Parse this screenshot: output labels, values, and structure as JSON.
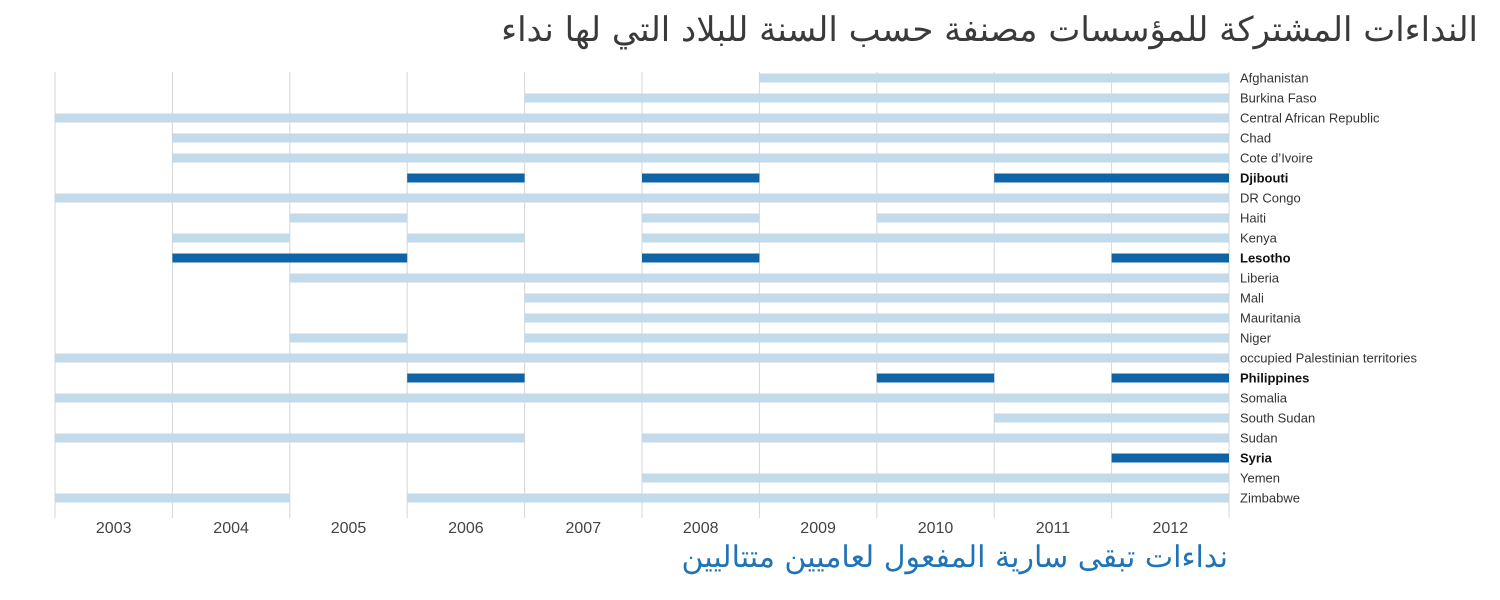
{
  "title": "النداءات المشتركة للمؤسسات مصنفة حسب السنة للبلاد التي لها نداء",
  "subtitle": "نداءات تبقى سارية المفعول لعاميين متتاليين",
  "colors": {
    "light": "#c2daea",
    "dark": "#0f64a8",
    "grid": "#d6d6d6"
  },
  "chart_data": {
    "type": "bar",
    "title": "النداءات المشتركة للمؤسسات مصنفة حسب السنة للبلاد التي لها نداء",
    "subtitle": "نداءات تبقى سارية المفعول لعاميين متتاليين",
    "x": [
      "2003",
      "2004",
      "2005",
      "2006",
      "2007",
      "2008",
      "2009",
      "2010",
      "2011",
      "2012"
    ],
    "rows": [
      {
        "name": "Afghanistan",
        "highlight": false,
        "years": [
          2009,
          2010,
          2011,
          2012
        ]
      },
      {
        "name": "Burkina Faso",
        "highlight": false,
        "years": [
          2007,
          2008,
          2009,
          2010,
          2011,
          2012
        ]
      },
      {
        "name": "Central African Republic",
        "highlight": false,
        "years": [
          2003,
          2004,
          2005,
          2006,
          2007,
          2008,
          2009,
          2010,
          2011,
          2012
        ]
      },
      {
        "name": "Chad",
        "highlight": false,
        "years": [
          2004,
          2005,
          2006,
          2007,
          2008,
          2009,
          2010,
          2011,
          2012
        ]
      },
      {
        "name": "Cote d’Ivoire",
        "highlight": false,
        "years": [
          2004,
          2005,
          2006,
          2007,
          2008,
          2009,
          2010,
          2011,
          2012
        ]
      },
      {
        "name": "Djibouti",
        "highlight": true,
        "years": [
          2006,
          2008,
          2011,
          2012
        ]
      },
      {
        "name": "DR Congo",
        "highlight": false,
        "years": [
          2003,
          2004,
          2005,
          2006,
          2007,
          2008,
          2009,
          2010,
          2011,
          2012
        ]
      },
      {
        "name": "Haiti",
        "highlight": false,
        "years": [
          2005,
          2008,
          2010,
          2011,
          2012
        ]
      },
      {
        "name": "Kenya",
        "highlight": false,
        "years": [
          2004,
          2006,
          2008,
          2009,
          2010,
          2011,
          2012
        ]
      },
      {
        "name": "Lesotho",
        "highlight": true,
        "years": [
          2004,
          2005,
          2008,
          2012
        ]
      },
      {
        "name": "Liberia",
        "highlight": false,
        "years": [
          2005,
          2006,
          2007,
          2008,
          2009,
          2010,
          2011,
          2012
        ]
      },
      {
        "name": "Mali",
        "highlight": false,
        "years": [
          2007,
          2008,
          2009,
          2010,
          2011,
          2012
        ]
      },
      {
        "name": "Mauritania",
        "highlight": false,
        "years": [
          2007,
          2008,
          2009,
          2010,
          2011,
          2012
        ]
      },
      {
        "name": "Niger",
        "highlight": false,
        "years": [
          2005,
          2007,
          2008,
          2009,
          2010,
          2011,
          2012
        ]
      },
      {
        "name": "occupied Palestinian territories",
        "highlight": false,
        "years": [
          2003,
          2004,
          2005,
          2006,
          2007,
          2008,
          2009,
          2010,
          2011,
          2012
        ]
      },
      {
        "name": "Philippines",
        "highlight": true,
        "years": [
          2006,
          2010,
          2012
        ]
      },
      {
        "name": "Somalia",
        "highlight": false,
        "years": [
          2003,
          2004,
          2005,
          2006,
          2007,
          2008,
          2009,
          2010,
          2011,
          2012
        ]
      },
      {
        "name": "South Sudan",
        "highlight": false,
        "years": [
          2011,
          2012
        ]
      },
      {
        "name": "Sudan",
        "highlight": false,
        "years": [
          2003,
          2004,
          2005,
          2006,
          2008,
          2009,
          2010,
          2011,
          2012
        ]
      },
      {
        "name": "Syria",
        "highlight": true,
        "years": [
          2012
        ]
      },
      {
        "name": "Yemen",
        "highlight": false,
        "years": [
          2008,
          2009,
          2010,
          2011,
          2012
        ]
      },
      {
        "name": "Zimbabwe",
        "highlight": false,
        "years": [
          2003,
          2004,
          2006,
          2007,
          2008,
          2009,
          2010,
          2011,
          2012
        ]
      }
    ],
    "grid": true,
    "legend": "none"
  }
}
